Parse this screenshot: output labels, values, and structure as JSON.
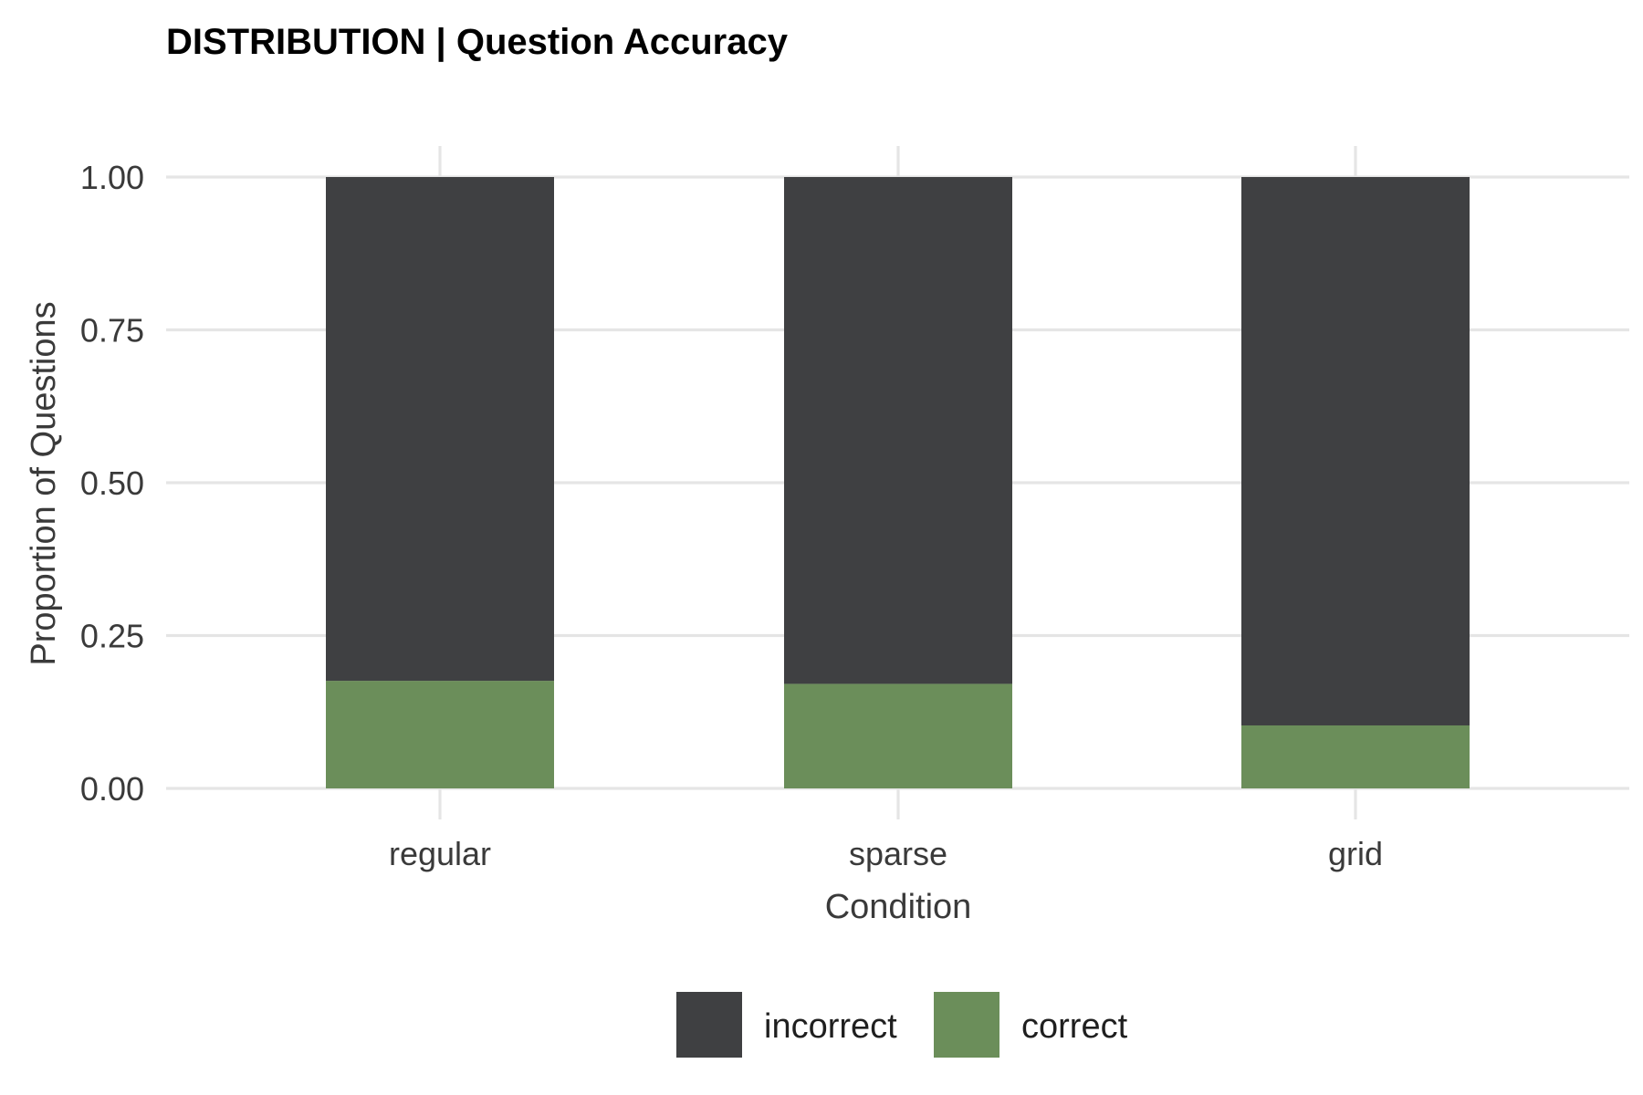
{
  "chart_data": {
    "type": "bar",
    "stacked": true,
    "title": "DISTRIBUTION | Question Accuracy",
    "xlabel": "Condition",
    "ylabel": "Proportion of Questions",
    "categories": [
      "regular",
      "sparse",
      "grid"
    ],
    "series": [
      {
        "name": "correct",
        "color": "#6b8e5a",
        "values": [
          0.176,
          0.171,
          0.103
        ]
      },
      {
        "name": "incorrect",
        "color": "#3f4042",
        "values": [
          0.824,
          0.829,
          0.897
        ]
      }
    ],
    "ylim": [
      0,
      1
    ],
    "yticks": [
      "0.00",
      "0.25",
      "0.50",
      "0.75",
      "1.00"
    ],
    "ytick_values": [
      0,
      0.25,
      0.5,
      0.75,
      1.0
    ],
    "grid": true,
    "legend": {
      "position": "bottom",
      "items": [
        {
          "label": "incorrect",
          "color": "#3f4042"
        },
        {
          "label": "correct",
          "color": "#6b8e5a"
        }
      ]
    },
    "gridline_color": "#e5e5e5"
  }
}
